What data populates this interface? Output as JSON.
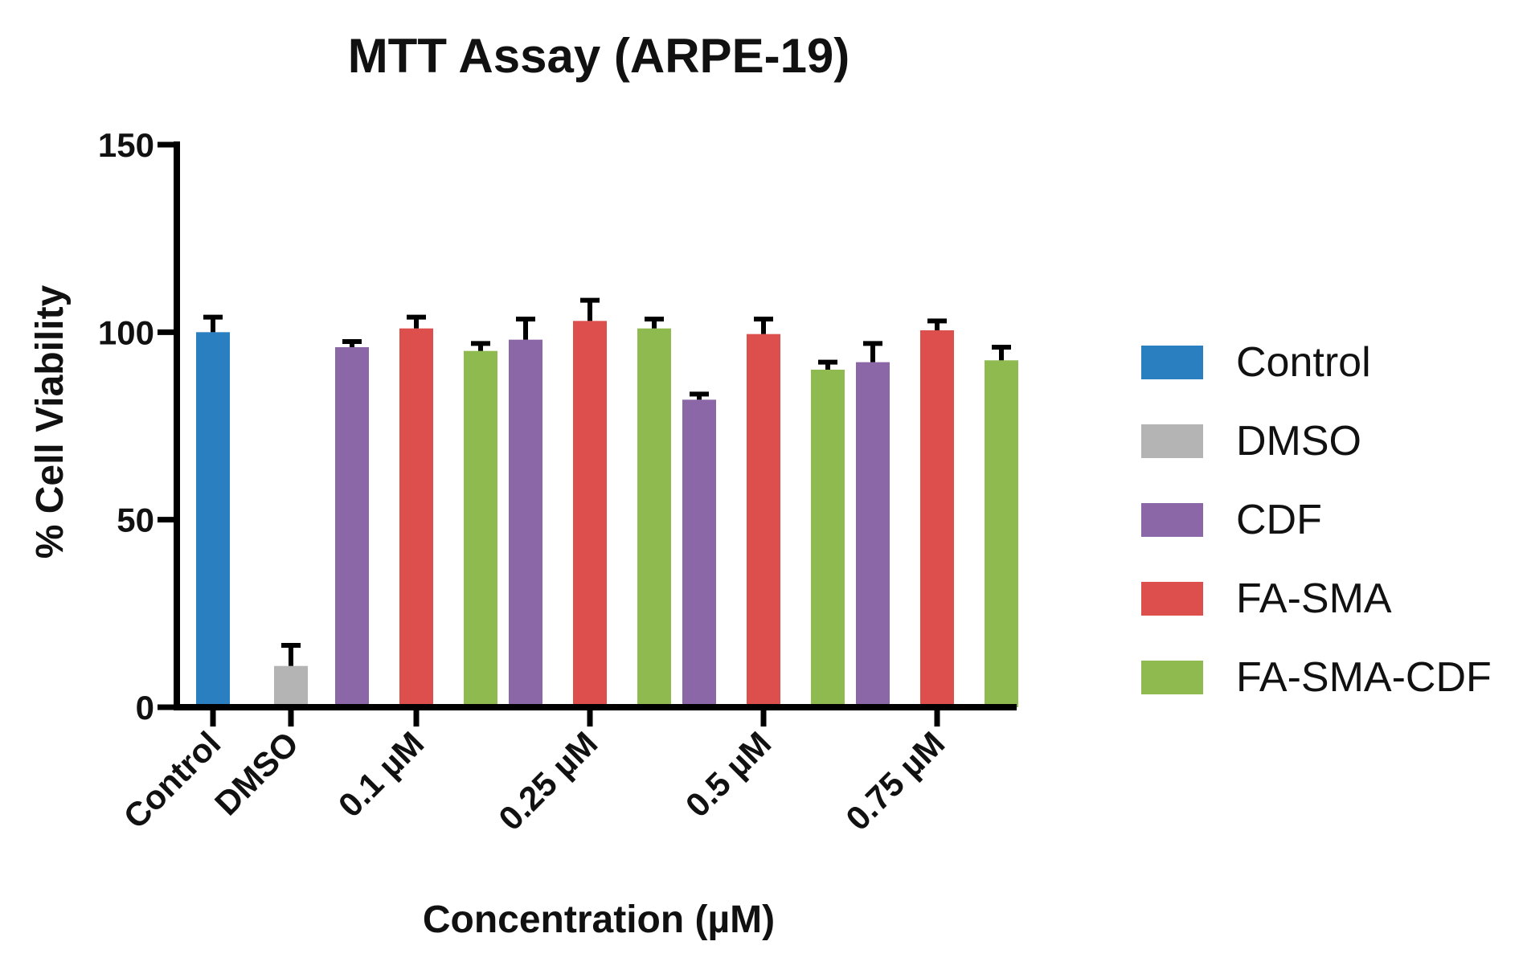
{
  "chart_data": {
    "type": "bar",
    "title": "MTT Assay (ARPE-19)",
    "xlabel": "Concentration  (µM)",
    "ylabel": "% Cell Viability",
    "ylim": [
      0,
      150
    ],
    "yticks": [
      0,
      50,
      100,
      150
    ],
    "categories": [
      "Control",
      "DMSO",
      "0.1 µM",
      "0.25 µM",
      "0.5 µM",
      "0.75 µM"
    ],
    "series": [
      {
        "name": "Control",
        "color": "#2a7fc1",
        "values": [
          100,
          null,
          null,
          null,
          null,
          null
        ],
        "errors": [
          4,
          null,
          null,
          null,
          null,
          null
        ]
      },
      {
        "name": "DMSO",
        "color": "#b4b4b4",
        "values": [
          null,
          11,
          null,
          null,
          null,
          null
        ],
        "errors": [
          null,
          5.5,
          null,
          null,
          null,
          null
        ]
      },
      {
        "name": "CDF",
        "color": "#8c67a8",
        "values": [
          null,
          null,
          96,
          98,
          82,
          92
        ],
        "errors": [
          null,
          null,
          1.5,
          5.5,
          1.5,
          5
        ]
      },
      {
        "name": "FA-SMA",
        "color": "#dd4f4c",
        "values": [
          null,
          null,
          101,
          103,
          99.5,
          100.5
        ],
        "errors": [
          null,
          null,
          3,
          5.5,
          4,
          2.5
        ]
      },
      {
        "name": "FA-SMA-CDF",
        "color": "#8fba50",
        "values": [
          null,
          null,
          95,
          101,
          90,
          92.5
        ],
        "errors": [
          null,
          null,
          2,
          2.5,
          2,
          3.5
        ]
      }
    ],
    "legend_position": "right"
  }
}
